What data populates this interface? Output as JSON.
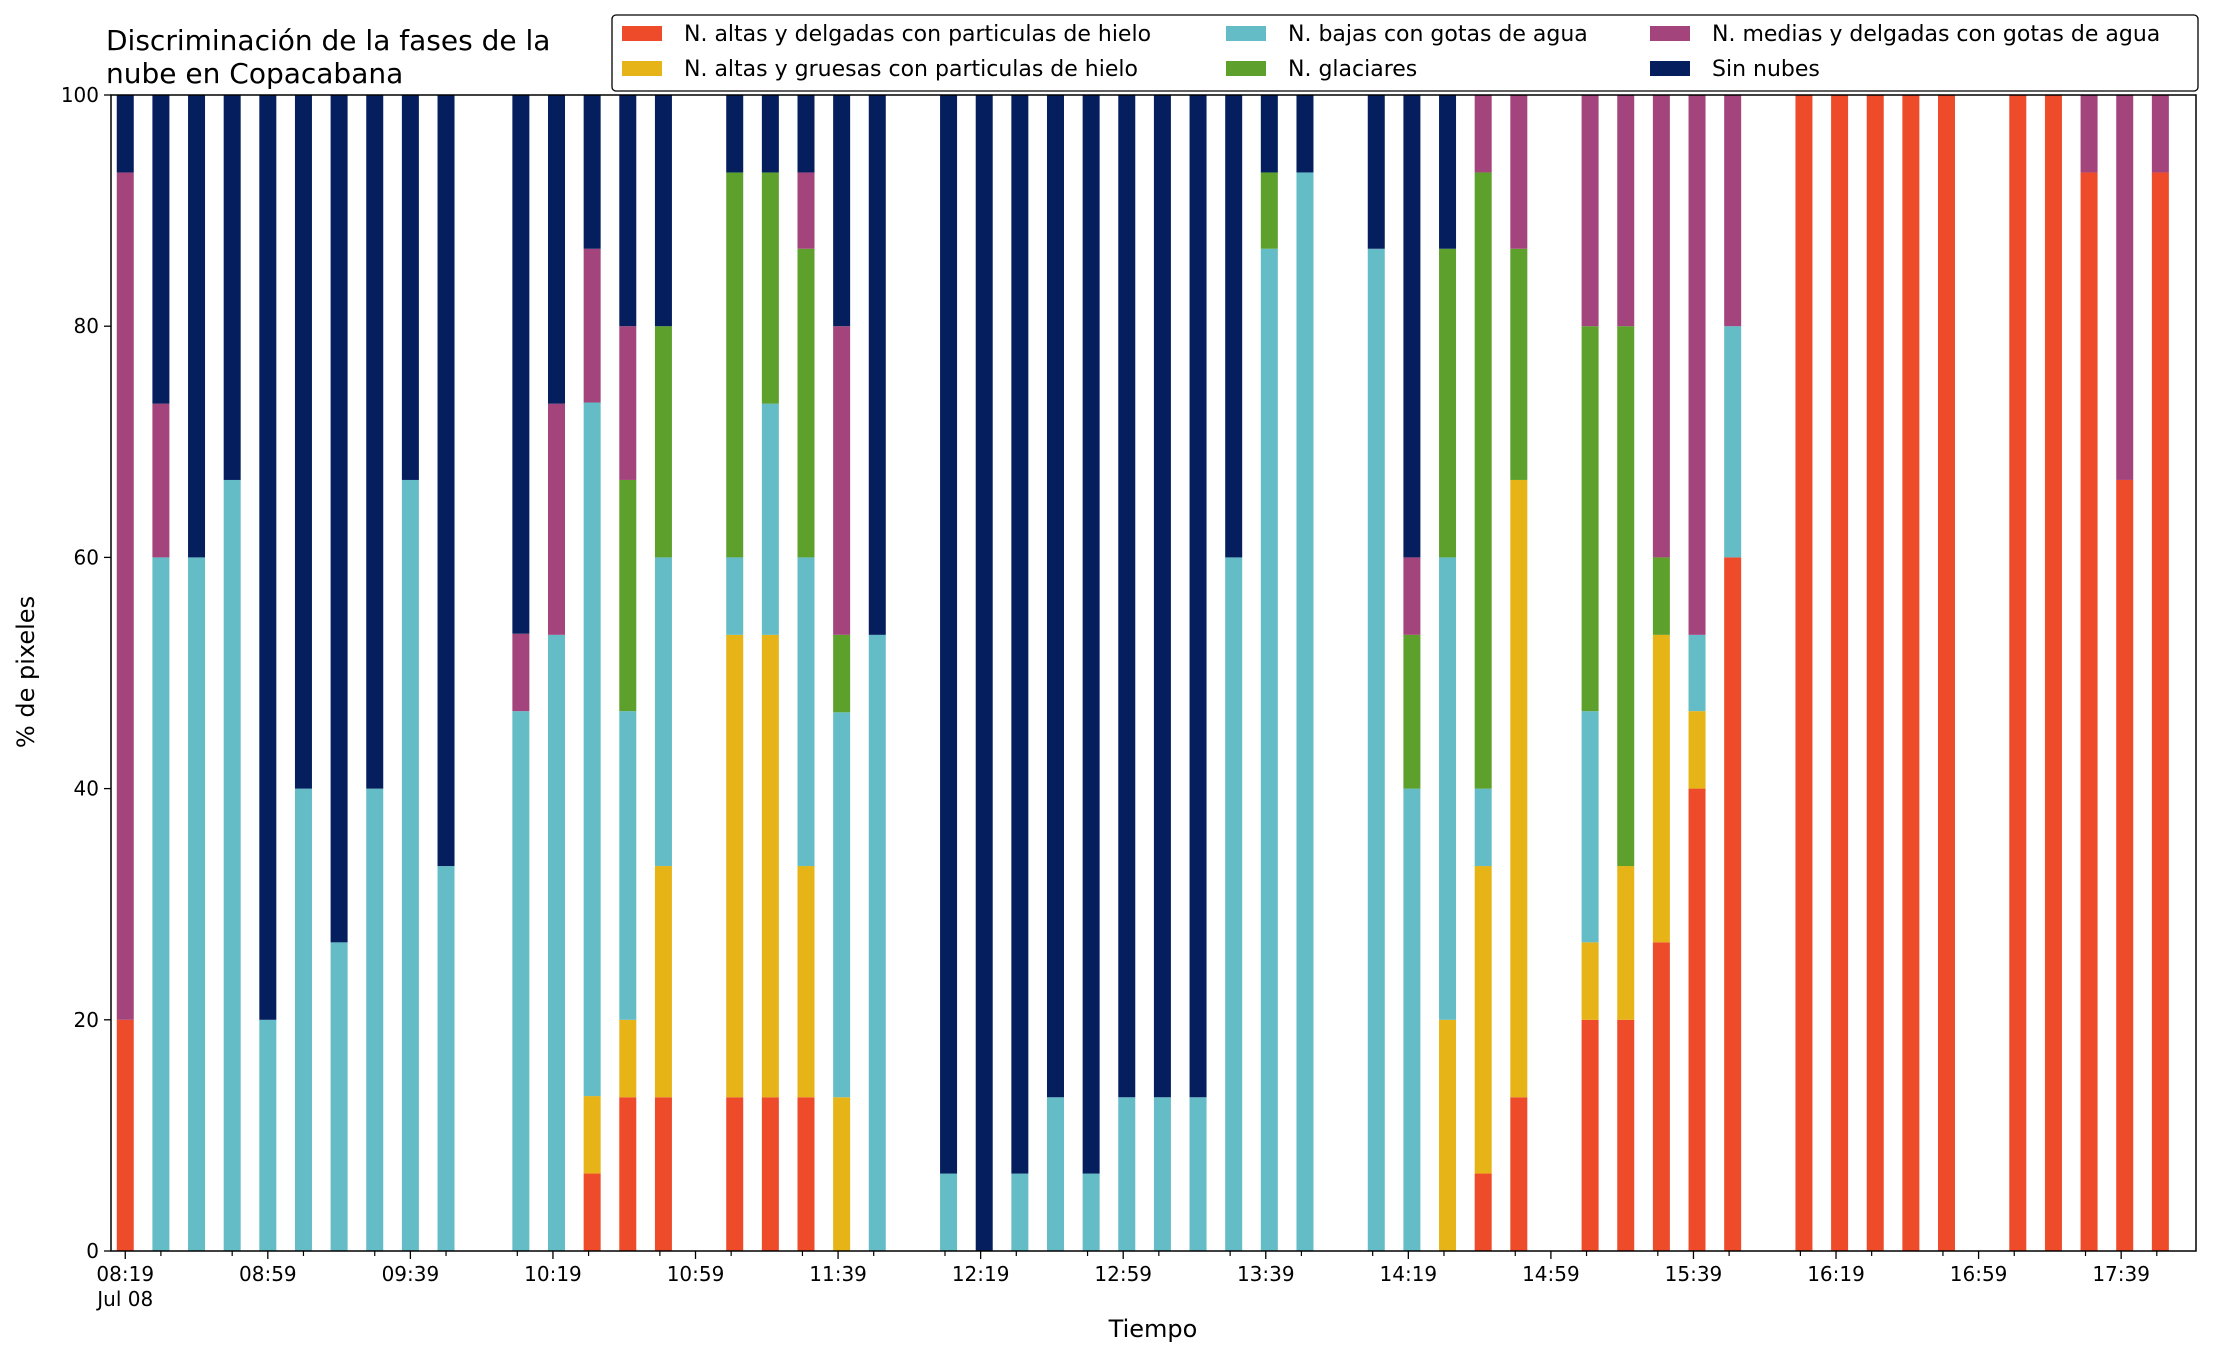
{
  "chart_data": {
    "type": "bar",
    "stacked": true,
    "title_lines": [
      "Discriminación de la fases de la",
      "nube en Copacabana"
    ],
    "xlabel": "Tiempo",
    "ylabel": "% de pixeles",
    "ylim": [
      0,
      100
    ],
    "yticks": [
      0,
      20,
      40,
      60,
      80,
      100
    ],
    "x_minutes_range": [
      495,
      1080
    ],
    "x_major_ticks": [
      {
        "min": 499,
        "label": "08:19",
        "sublabel": "Jul 08"
      },
      {
        "min": 539,
        "label": "08:59"
      },
      {
        "min": 579,
        "label": "09:39"
      },
      {
        "min": 619,
        "label": "10:19"
      },
      {
        "min": 659,
        "label": "10:59"
      },
      {
        "min": 699,
        "label": "11:39"
      },
      {
        "min": 739,
        "label": "12:19"
      },
      {
        "min": 779,
        "label": "12:59"
      },
      {
        "min": 819,
        "label": "13:39"
      },
      {
        "min": 859,
        "label": "14:19"
      },
      {
        "min": 899,
        "label": "14:59"
      },
      {
        "min": 939,
        "label": "15:39"
      },
      {
        "min": 979,
        "label": "16:19"
      },
      {
        "min": 1019,
        "label": "16:59"
      },
      {
        "min": 1059,
        "label": "17:39"
      }
    ],
    "grid": false,
    "legend": {
      "placement": "top-right",
      "columns": 3
    },
    "series": [
      {
        "name": "N. altas y delgadas con particulas de hielo",
        "color": "#ee4b2b"
      },
      {
        "name": "N. altas y gruesas con particulas de hielo",
        "color": "#e6b416"
      },
      {
        "name": "N. bajas con gotas de agua",
        "color": "#64bcc7"
      },
      {
        "name": "N. glaciares",
        "color": "#5da02c"
      },
      {
        "name": "N. medias y delgadas con gotas de agua",
        "color": "#a3457c"
      },
      {
        "name": "Sin nubes",
        "color": "#041e5e"
      }
    ],
    "bars": [
      {
        "min": 499,
        "v": [
          20,
          0,
          0,
          0,
          73.3,
          6.7
        ]
      },
      {
        "min": 509,
        "v": [
          0,
          0,
          60,
          0,
          13.3,
          26.7
        ]
      },
      {
        "min": 519,
        "v": [
          0,
          0,
          60,
          0,
          0,
          40
        ]
      },
      {
        "min": 529,
        "v": [
          0,
          0,
          66.7,
          0,
          0,
          33.3
        ]
      },
      {
        "min": 539,
        "v": [
          0,
          0,
          20,
          0,
          0,
          80
        ]
      },
      {
        "min": 549,
        "v": [
          0,
          0,
          40,
          0,
          0,
          60
        ]
      },
      {
        "min": 559,
        "v": [
          0,
          0,
          26.7,
          0,
          0,
          73.3
        ]
      },
      {
        "min": 569,
        "v": [
          0,
          0,
          40,
          0,
          0,
          60
        ]
      },
      {
        "min": 579,
        "v": [
          0,
          0,
          66.7,
          0,
          0,
          33.3
        ]
      },
      {
        "min": 589,
        "v": [
          0,
          0,
          33.3,
          0,
          0,
          66.7
        ]
      },
      {
        "min": 610,
        "v": [
          0,
          0,
          46.7,
          0,
          6.7,
          46.6
        ]
      },
      {
        "min": 620,
        "v": [
          0,
          0,
          53.3,
          0,
          20,
          26.7
        ]
      },
      {
        "min": 630,
        "v": [
          6.7,
          6.7,
          60,
          0,
          13.3,
          13.3
        ]
      },
      {
        "min": 640,
        "v": [
          13.3,
          6.7,
          26.7,
          20,
          13.3,
          20
        ]
      },
      {
        "min": 650,
        "v": [
          13.3,
          20,
          26.7,
          20,
          0,
          20
        ]
      },
      {
        "min": 670,
        "v": [
          13.3,
          40,
          6.7,
          33.3,
          0,
          6.7
        ]
      },
      {
        "min": 680,
        "v": [
          13.3,
          40,
          20,
          20,
          0,
          6.7
        ]
      },
      {
        "min": 690,
        "v": [
          13.3,
          20,
          26.7,
          26.7,
          6.6,
          6.7
        ]
      },
      {
        "min": 700,
        "v": [
          0,
          13.3,
          33.3,
          6.7,
          26.7,
          20
        ]
      },
      {
        "min": 710,
        "v": [
          0,
          0,
          53.3,
          0,
          0,
          46.7
        ]
      },
      {
        "min": 730,
        "v": [
          0,
          0,
          6.7,
          0,
          0,
          93.3
        ]
      },
      {
        "min": 740,
        "v": [
          0,
          0,
          0,
          0,
          0,
          100
        ]
      },
      {
        "min": 750,
        "v": [
          0,
          0,
          6.7,
          0,
          0,
          93.3
        ]
      },
      {
        "min": 760,
        "v": [
          0,
          0,
          13.3,
          0,
          0,
          86.7
        ]
      },
      {
        "min": 770,
        "v": [
          0,
          0,
          6.7,
          0,
          0,
          93.3
        ]
      },
      {
        "min": 780,
        "v": [
          0,
          0,
          13.3,
          0,
          0,
          86.7
        ]
      },
      {
        "min": 790,
        "v": [
          0,
          0,
          13.3,
          0,
          0,
          86.7
        ]
      },
      {
        "min": 800,
        "v": [
          0,
          0,
          13.3,
          0,
          0,
          86.7
        ]
      },
      {
        "min": 810,
        "v": [
          0,
          0,
          60,
          0,
          0,
          40
        ]
      },
      {
        "min": 820,
        "v": [
          0,
          0,
          86.7,
          6.6,
          0,
          6.7
        ]
      },
      {
        "min": 830,
        "v": [
          0,
          0,
          93.3,
          0,
          0,
          6.7
        ]
      },
      {
        "min": 850,
        "v": [
          0,
          0,
          86.7,
          0,
          0,
          13.3
        ]
      },
      {
        "min": 860,
        "v": [
          0,
          0,
          40,
          13.3,
          6.7,
          40
        ]
      },
      {
        "min": 870,
        "v": [
          0,
          20,
          40,
          26.7,
          0,
          13.3
        ]
      },
      {
        "min": 880,
        "v": [
          6.7,
          26.6,
          6.7,
          53.3,
          6.7,
          0
        ]
      },
      {
        "min": 890,
        "v": [
          13.3,
          53.4,
          0,
          20,
          13.3,
          0
        ]
      },
      {
        "min": 910,
        "v": [
          20,
          6.7,
          20,
          33.3,
          20,
          0
        ]
      },
      {
        "min": 920,
        "v": [
          20,
          13.3,
          0,
          46.7,
          20,
          0
        ]
      },
      {
        "min": 930,
        "v": [
          26.7,
          26.6,
          0,
          6.7,
          40,
          0
        ]
      },
      {
        "min": 940,
        "v": [
          40,
          6.7,
          6.6,
          0,
          46.7,
          0
        ]
      },
      {
        "min": 950,
        "v": [
          60,
          0,
          20,
          0,
          20,
          0
        ]
      },
      {
        "min": 970,
        "v": [
          100,
          0,
          0,
          0,
          0,
          0
        ]
      },
      {
        "min": 980,
        "v": [
          100,
          0,
          0,
          0,
          0,
          0
        ]
      },
      {
        "min": 990,
        "v": [
          100,
          0,
          0,
          0,
          0,
          0
        ]
      },
      {
        "min": 1000,
        "v": [
          100,
          0,
          0,
          0,
          0,
          0
        ]
      },
      {
        "min": 1010,
        "v": [
          100,
          0,
          0,
          0,
          0,
          0
        ]
      },
      {
        "min": 1030,
        "v": [
          100,
          0,
          0,
          0,
          0,
          0
        ]
      },
      {
        "min": 1040,
        "v": [
          100,
          0,
          0,
          0,
          0,
          0
        ]
      },
      {
        "min": 1050,
        "v": [
          93.3,
          0,
          0,
          0,
          6.7,
          0
        ]
      },
      {
        "min": 1060,
        "v": [
          66.7,
          0,
          0,
          0,
          33.3,
          0
        ]
      },
      {
        "min": 1070,
        "v": [
          93.3,
          0,
          0,
          0,
          6.7,
          0
        ]
      }
    ]
  }
}
